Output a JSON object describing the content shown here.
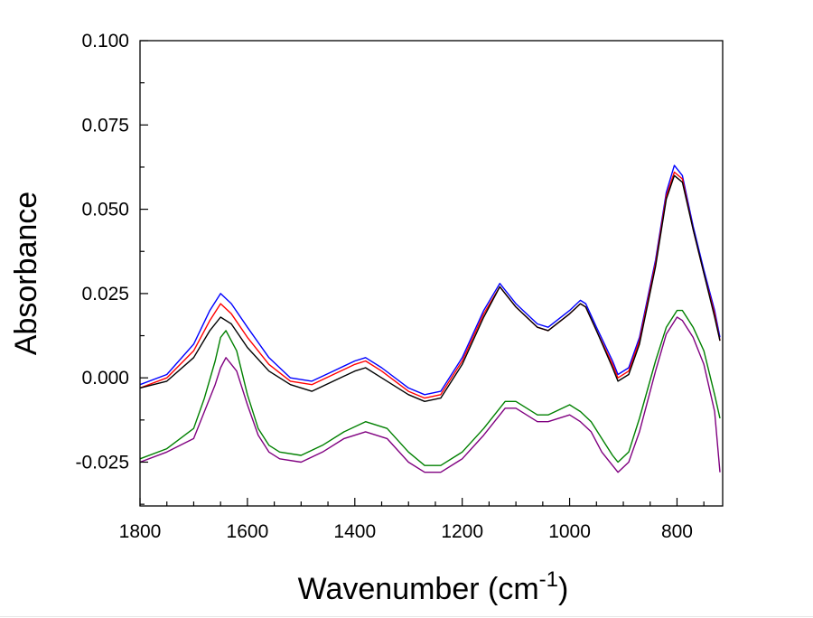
{
  "chart_data": {
    "type": "line",
    "title": "",
    "xlabel": "Wavenumber (cm",
    "xlabel_sup": "-1",
    "xlabel_close": ")",
    "ylabel": "Absorbance",
    "xlim": [
      1800,
      715
    ],
    "ylim": [
      -0.038,
      0.1
    ],
    "x_reversed": true,
    "grid": false,
    "xticks": [
      1800,
      1600,
      1400,
      1200,
      1000,
      800
    ],
    "xtick_labels": [
      "1800",
      "1600",
      "1400",
      "1200",
      "1000",
      "800"
    ],
    "yticks": [
      -0.025,
      0.0,
      0.025,
      0.05,
      0.075,
      0.1
    ],
    "ytick_labels": [
      "-0.025",
      "0.000",
      "0.025",
      "0.050",
      "0.075",
      "0.100"
    ],
    "series": [
      {
        "color": "#0000ff",
        "x": [
          1800,
          1750,
          1700,
          1670,
          1650,
          1630,
          1600,
          1560,
          1520,
          1480,
          1440,
          1400,
          1380,
          1350,
          1300,
          1270,
          1240,
          1200,
          1160,
          1130,
          1100,
          1060,
          1040,
          1000,
          980,
          970,
          950,
          920,
          910,
          890,
          870,
          840,
          820,
          805,
          790,
          770,
          750,
          730,
          720
        ],
        "y": [
          -0.002,
          0.001,
          0.01,
          0.02,
          0.025,
          0.022,
          0.015,
          0.006,
          0.0,
          -0.001,
          0.002,
          0.005,
          0.006,
          0.003,
          -0.003,
          -0.005,
          -0.004,
          0.006,
          0.02,
          0.028,
          0.022,
          0.016,
          0.015,
          0.02,
          0.023,
          0.022,
          0.015,
          0.005,
          0.001,
          0.003,
          0.012,
          0.035,
          0.055,
          0.063,
          0.06,
          0.045,
          0.032,
          0.02,
          0.012
        ]
      },
      {
        "color": "#ff0000",
        "x": [
          1800,
          1750,
          1700,
          1670,
          1650,
          1630,
          1600,
          1560,
          1520,
          1480,
          1440,
          1400,
          1380,
          1350,
          1300,
          1270,
          1240,
          1200,
          1160,
          1130,
          1100,
          1060,
          1040,
          1000,
          980,
          970,
          950,
          920,
          910,
          890,
          870,
          840,
          820,
          805,
          790,
          770,
          750,
          730,
          720
        ],
        "y": [
          -0.003,
          0.0,
          0.008,
          0.017,
          0.022,
          0.019,
          0.012,
          0.004,
          -0.001,
          -0.002,
          0.001,
          0.004,
          0.005,
          0.002,
          -0.004,
          -0.006,
          -0.005,
          0.005,
          0.019,
          0.027,
          0.021,
          0.015,
          0.014,
          0.019,
          0.022,
          0.021,
          0.014,
          0.004,
          0.0,
          0.002,
          0.011,
          0.034,
          0.054,
          0.061,
          0.059,
          0.044,
          0.031,
          0.019,
          0.011
        ]
      },
      {
        "color": "#000000",
        "x": [
          1800,
          1750,
          1700,
          1670,
          1650,
          1630,
          1600,
          1560,
          1520,
          1480,
          1440,
          1400,
          1380,
          1350,
          1300,
          1270,
          1240,
          1200,
          1160,
          1130,
          1100,
          1060,
          1040,
          1000,
          980,
          970,
          950,
          920,
          910,
          890,
          870,
          840,
          820,
          805,
          790,
          770,
          750,
          730,
          720
        ],
        "y": [
          -0.003,
          -0.001,
          0.006,
          0.014,
          0.018,
          0.016,
          0.009,
          0.002,
          -0.002,
          -0.004,
          -0.001,
          0.002,
          0.003,
          0.0,
          -0.005,
          -0.007,
          -0.006,
          0.004,
          0.018,
          0.027,
          0.021,
          0.015,
          0.014,
          0.019,
          0.022,
          0.021,
          0.014,
          0.003,
          -0.001,
          0.001,
          0.01,
          0.033,
          0.053,
          0.06,
          0.058,
          0.044,
          0.031,
          0.018,
          0.011
        ]
      },
      {
        "color": "#008000",
        "x": [
          1800,
          1750,
          1700,
          1680,
          1660,
          1650,
          1640,
          1620,
          1600,
          1580,
          1560,
          1540,
          1500,
          1460,
          1420,
          1380,
          1340,
          1300,
          1270,
          1240,
          1200,
          1160,
          1120,
          1100,
          1060,
          1040,
          1000,
          980,
          960,
          940,
          920,
          910,
          890,
          870,
          840,
          820,
          800,
          790,
          770,
          750,
          730,
          720
        ],
        "y": [
          -0.024,
          -0.021,
          -0.015,
          -0.006,
          0.005,
          0.012,
          0.014,
          0.008,
          -0.005,
          -0.015,
          -0.02,
          -0.022,
          -0.023,
          -0.02,
          -0.016,
          -0.013,
          -0.015,
          -0.022,
          -0.026,
          -0.026,
          -0.022,
          -0.015,
          -0.007,
          -0.007,
          -0.011,
          -0.011,
          -0.008,
          -0.01,
          -0.013,
          -0.018,
          -0.023,
          -0.025,
          -0.022,
          -0.012,
          0.005,
          0.015,
          0.02,
          0.02,
          0.015,
          0.008,
          -0.005,
          -0.012
        ]
      },
      {
        "color": "#800080",
        "x": [
          1800,
          1750,
          1700,
          1680,
          1660,
          1650,
          1640,
          1620,
          1600,
          1580,
          1560,
          1540,
          1500,
          1460,
          1420,
          1380,
          1340,
          1300,
          1270,
          1240,
          1200,
          1160,
          1120,
          1100,
          1060,
          1040,
          1000,
          980,
          960,
          940,
          920,
          910,
          890,
          870,
          840,
          820,
          800,
          790,
          770,
          750,
          730,
          720
        ],
        "y": [
          -0.025,
          -0.022,
          -0.018,
          -0.01,
          -0.002,
          0.003,
          0.006,
          0.002,
          -0.008,
          -0.017,
          -0.022,
          -0.024,
          -0.025,
          -0.022,
          -0.018,
          -0.016,
          -0.018,
          -0.025,
          -0.028,
          -0.028,
          -0.024,
          -0.017,
          -0.009,
          -0.009,
          -0.013,
          -0.013,
          -0.011,
          -0.013,
          -0.016,
          -0.022,
          -0.026,
          -0.028,
          -0.025,
          -0.016,
          0.002,
          0.013,
          0.018,
          0.017,
          0.012,
          0.004,
          -0.01,
          -0.028
        ]
      }
    ]
  }
}
